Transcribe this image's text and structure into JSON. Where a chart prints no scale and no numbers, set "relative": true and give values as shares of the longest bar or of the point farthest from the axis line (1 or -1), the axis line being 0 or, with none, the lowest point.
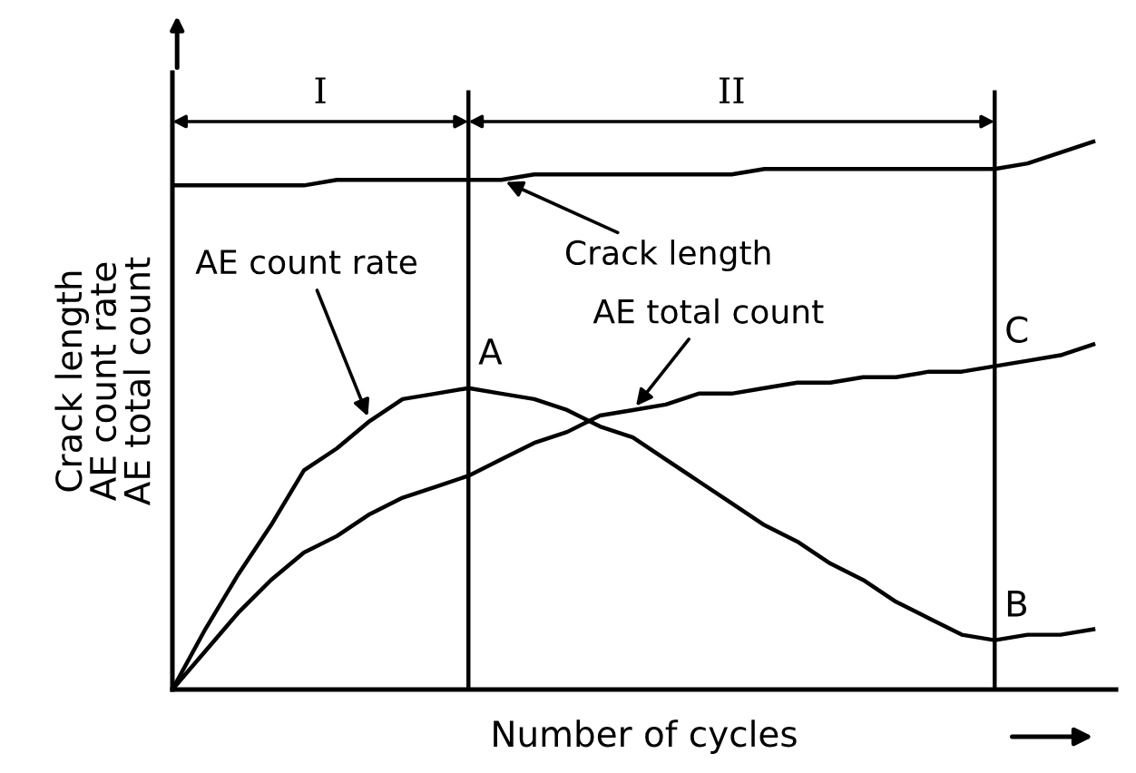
{
  "chart_data": {
    "type": "line",
    "relative": true,
    "xlabel": "Number of cycles",
    "ylabel": "Crack length\nAE count rate\nAE total count",
    "categories": [
      null,
      null,
      null,
      null,
      null,
      null,
      null,
      null,
      null,
      null,
      null,
      null,
      null,
      null,
      null,
      null,
      null,
      null,
      null,
      null,
      null,
      null,
      null,
      null,
      null,
      null,
      null,
      null,
      null
    ],
    "series": [
      {
        "name": "Crack length",
        "color": "#000000",
        "values": [
          0.92,
          0.92,
          0.92,
          0.92,
          0.92,
          0.93,
          0.93,
          0.93,
          0.93,
          0.93,
          0.93,
          0.94,
          0.94,
          0.94,
          0.94,
          0.94,
          0.94,
          0.94,
          0.95,
          0.95,
          0.95,
          0.95,
          0.95,
          0.95,
          0.95,
          0.95,
          0.96,
          0.98,
          1.0
        ]
      },
      {
        "name": "AE count rate",
        "color": "#000000",
        "values": [
          0,
          0.11,
          0.21,
          0.3,
          0.4,
          0.44,
          0.49,
          0.53,
          0.54,
          0.55,
          0.54,
          0.53,
          0.51,
          0.48,
          0.46,
          0.42,
          0.38,
          0.34,
          0.3,
          0.27,
          0.23,
          0.2,
          0.16,
          0.13,
          0.1,
          0.09,
          0.1,
          0.1,
          0.11
        ]
      },
      {
        "name": "AE total count",
        "color": "#000000",
        "values": [
          0,
          0.07,
          0.14,
          0.2,
          0.25,
          0.28,
          0.32,
          0.35,
          0.37,
          0.39,
          0.42,
          0.45,
          0.47,
          0.5,
          0.51,
          0.52,
          0.54,
          0.54,
          0.55,
          0.56,
          0.56,
          0.57,
          0.57,
          0.58,
          0.58,
          0.59,
          0.6,
          0.61,
          0.63
        ]
      }
    ],
    "annotations": [
      "I",
      "II",
      "A",
      "B",
      "C"
    ],
    "marker": "none",
    "line_style": "solid"
  }
}
